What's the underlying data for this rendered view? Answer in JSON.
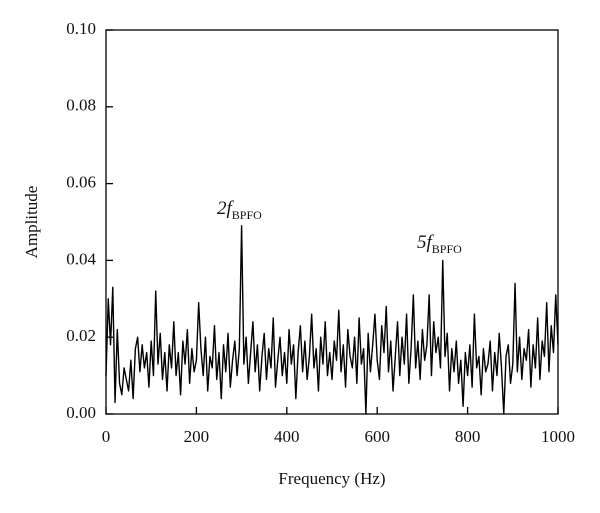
{
  "chart_data": {
    "type": "line",
    "x_label": "Frequency (Hz)",
    "y_label": "Amplitude",
    "annotations": [
      {
        "text": "2f",
        "subscript": "BPFO"
      },
      {
        "text": "5f",
        "subscript": "BPFO"
      }
    ],
    "x": [
      0,
      5,
      10,
      15,
      20,
      25,
      30,
      35,
      40,
      45,
      50,
      55,
      60,
      65,
      70,
      75,
      80,
      85,
      90,
      95,
      100,
      105,
      110,
      115,
      120,
      125,
      130,
      135,
      140,
      145,
      150,
      155,
      160,
      165,
      170,
      175,
      180,
      185,
      190,
      195,
      200,
      205,
      210,
      215,
      220,
      225,
      230,
      235,
      240,
      245,
      250,
      255,
      260,
      265,
      270,
      275,
      280,
      285,
      290,
      295,
      300,
      305,
      310,
      315,
      320,
      325,
      330,
      335,
      340,
      345,
      350,
      355,
      360,
      365,
      370,
      375,
      380,
      385,
      390,
      395,
      400,
      405,
      410,
      415,
      420,
      425,
      430,
      435,
      440,
      445,
      450,
      455,
      460,
      465,
      470,
      475,
      480,
      485,
      490,
      495,
      500,
      505,
      510,
      515,
      520,
      525,
      530,
      535,
      540,
      545,
      550,
      555,
      560,
      565,
      570,
      575,
      580,
      585,
      590,
      595,
      600,
      605,
      610,
      615,
      620,
      625,
      630,
      635,
      640,
      645,
      650,
      655,
      660,
      665,
      670,
      675,
      680,
      685,
      690,
      695,
      700,
      705,
      710,
      715,
      720,
      725,
      730,
      735,
      740,
      745,
      750,
      755,
      760,
      765,
      770,
      775,
      780,
      785,
      790,
      795,
      800,
      805,
      810,
      815,
      820,
      825,
      830,
      835,
      840,
      845,
      850,
      855,
      860,
      865,
      870,
      875,
      880,
      885,
      890,
      895,
      900,
      905,
      910,
      915,
      920,
      925,
      930,
      935,
      940,
      945,
      950,
      955,
      960,
      965,
      970,
      975,
      980,
      985,
      990,
      995,
      1000
    ],
    "series": [
      {
        "color": "#000000",
        "values": [
          0.01,
          0.03,
          0.018,
          0.033,
          0.003,
          0.022,
          0.008,
          0.005,
          0.012,
          0.009,
          0.006,
          0.014,
          0.004,
          0.017,
          0.02,
          0.011,
          0.018,
          0.012,
          0.016,
          0.007,
          0.019,
          0.01,
          0.032,
          0.013,
          0.021,
          0.009,
          0.016,
          0.006,
          0.018,
          0.012,
          0.024,
          0.01,
          0.016,
          0.005,
          0.019,
          0.013,
          0.022,
          0.008,
          0.017,
          0.011,
          0.014,
          0.029,
          0.017,
          0.01,
          0.02,
          0.006,
          0.015,
          0.012,
          0.023,
          0.009,
          0.016,
          0.004,
          0.018,
          0.011,
          0.021,
          0.007,
          0.014,
          0.019,
          0.01,
          0.017,
          0.049,
          0.013,
          0.02,
          0.008,
          0.016,
          0.024,
          0.011,
          0.018,
          0.006,
          0.015,
          0.021,
          0.009,
          0.017,
          0.012,
          0.025,
          0.007,
          0.014,
          0.02,
          0.01,
          0.016,
          0.008,
          0.022,
          0.013,
          0.018,
          0.004,
          0.016,
          0.023,
          0.011,
          0.019,
          0.009,
          0.015,
          0.026,
          0.012,
          0.017,
          0.006,
          0.02,
          0.013,
          0.024,
          0.01,
          0.016,
          0.009,
          0.019,
          0.014,
          0.027,
          0.011,
          0.018,
          0.007,
          0.022,
          0.015,
          0.012,
          0.02,
          0.008,
          0.025,
          0.013,
          0.017,
          0.0,
          0.021,
          0.011,
          0.018,
          0.026,
          0.014,
          0.009,
          0.023,
          0.016,
          0.028,
          0.011,
          0.019,
          0.006,
          0.015,
          0.024,
          0.01,
          0.02,
          0.013,
          0.026,
          0.008,
          0.017,
          0.031,
          0.012,
          0.019,
          0.009,
          0.022,
          0.014,
          0.018,
          0.031,
          0.01,
          0.024,
          0.016,
          0.02,
          0.012,
          0.04,
          0.015,
          0.021,
          0.006,
          0.017,
          0.011,
          0.019,
          0.008,
          0.014,
          0.002,
          0.016,
          0.01,
          0.018,
          0.007,
          0.026,
          0.012,
          0.015,
          0.005,
          0.017,
          0.011,
          0.013,
          0.019,
          0.006,
          0.016,
          0.01,
          0.021,
          0.012,
          0.0,
          0.015,
          0.018,
          0.008,
          0.013,
          0.034,
          0.011,
          0.02,
          0.009,
          0.017,
          0.014,
          0.022,
          0.007,
          0.018,
          0.012,
          0.025,
          0.009,
          0.019,
          0.015,
          0.029,
          0.011,
          0.023,
          0.016,
          0.031,
          0.018
        ]
      }
    ],
    "xlim": [
      0,
      1000
    ],
    "xticks": [
      0,
      200,
      400,
      600,
      800,
      1000
    ],
    "ylim": [
      0,
      0.1
    ],
    "yticks": [
      {
        "value": 0,
        "label": "0.00"
      },
      {
        "value": 0.02,
        "label": "0.02"
      },
      {
        "value": 0.04,
        "label": "0.04"
      },
      {
        "value": 0.06,
        "label": "0.06"
      },
      {
        "value": 0.08,
        "label": "0.08"
      },
      {
        "value": 0.1,
        "label": "0.10"
      }
    ],
    "grid": false
  }
}
